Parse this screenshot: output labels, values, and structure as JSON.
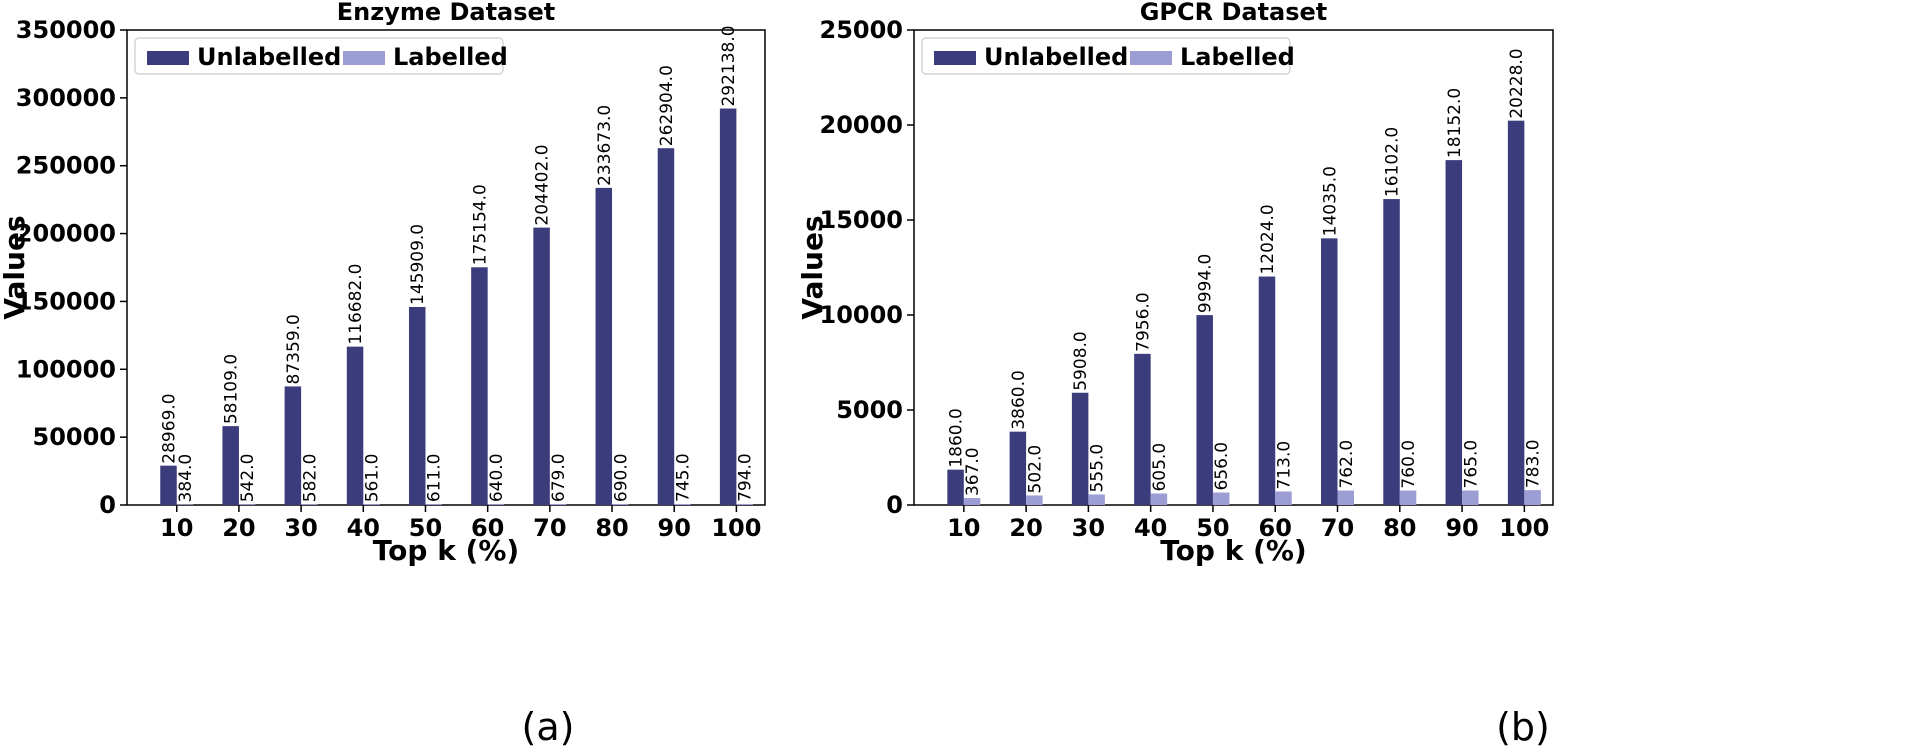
{
  "figure_captions": [
    "(a)",
    "(b)"
  ],
  "colors": {
    "unlabelled": "#3b3c7c",
    "labelled": "#9d9dd6"
  },
  "chart_data": [
    {
      "type": "bar",
      "title": "Enzyme Dataset",
      "xlabel": "Top k (%)",
      "ylabel": "Values",
      "ylim": [
        0,
        350000
      ],
      "yticks": [
        0,
        50000,
        100000,
        150000,
        200000,
        250000,
        300000,
        350000
      ],
      "categories": [
        "10",
        "20",
        "30",
        "40",
        "50",
        "60",
        "70",
        "80",
        "90",
        "100"
      ],
      "legend_position": "top-left",
      "series": [
        {
          "name": "Unlabelled",
          "values": [
            28969,
            58109,
            87359,
            116682,
            145909,
            175154,
            204402,
            233673,
            262904,
            292138
          ],
          "labels": [
            "28969.0",
            "58109.0",
            "87359.0",
            "116682.0",
            "145909.0",
            "175154.0",
            "204402.0",
            "233673.0",
            "262904.0",
            "292138.0"
          ]
        },
        {
          "name": "Labelled",
          "values": [
            384,
            542,
            582,
            561,
            611,
            640,
            679,
            690,
            745,
            794
          ],
          "labels": [
            "384.0",
            "542.0",
            "582.0",
            "561.0",
            "611.0",
            "640.0",
            "679.0",
            "690.0",
            "745.0",
            "794.0"
          ]
        }
      ]
    },
    {
      "type": "bar",
      "title": "GPCR Dataset",
      "xlabel": "Top k (%)",
      "ylabel": "Values",
      "ylim": [
        0,
        25000
      ],
      "yticks": [
        0,
        5000,
        10000,
        15000,
        20000,
        25000
      ],
      "categories": [
        "10",
        "20",
        "30",
        "40",
        "50",
        "60",
        "70",
        "80",
        "90",
        "100"
      ],
      "legend_position": "top-left",
      "series": [
        {
          "name": "Unlabelled",
          "values": [
            1860,
            3860,
            5908,
            7956,
            9994,
            12024,
            14035,
            16102,
            18152,
            20228
          ],
          "labels": [
            "1860.0",
            "3860.0",
            "5908.0",
            "7956.0",
            "9994.0",
            "12024.0",
            "14035.0",
            "16102.0",
            "18152.0",
            "20228.0"
          ]
        },
        {
          "name": "Labelled",
          "values": [
            367,
            502,
            555,
            605,
            656,
            713,
            762,
            760,
            765,
            783
          ],
          "labels": [
            "367.0",
            "502.0",
            "555.0",
            "605.0",
            "656.0",
            "713.0",
            "762.0",
            "760.0",
            "765.0",
            "783.0"
          ]
        }
      ]
    }
  ]
}
